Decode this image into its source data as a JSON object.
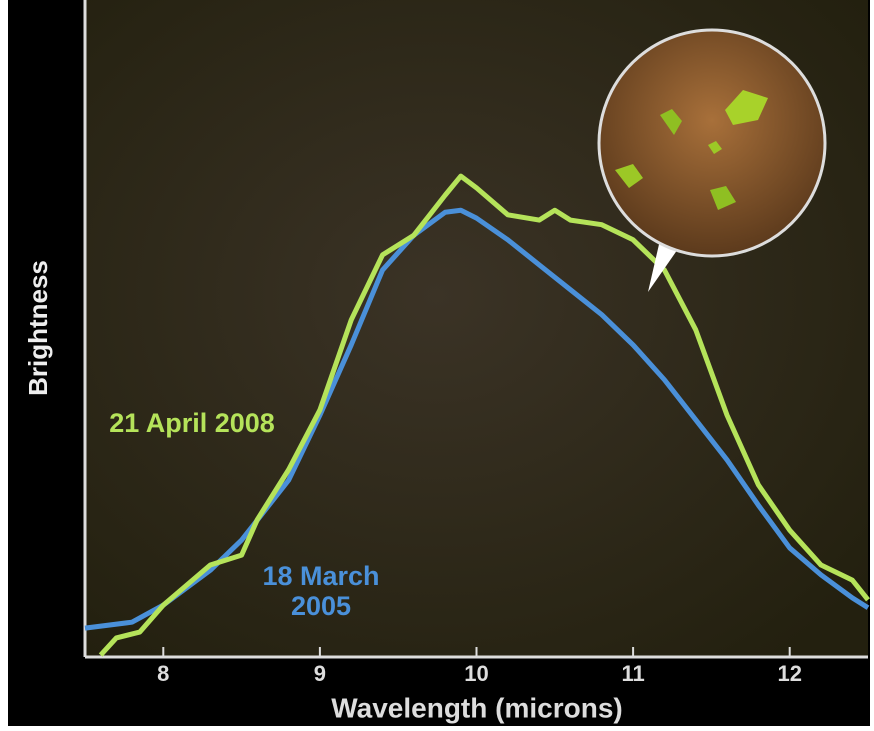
{
  "chart_data": {
    "type": "line",
    "xlabel": "Wavelength (microns)",
    "ylabel": "Brightness",
    "xlim": [
      7.5,
      12.5
    ],
    "xticks": [
      8,
      9,
      10,
      11,
      12
    ],
    "ylim": [
      0,
      100
    ],
    "series": [
      {
        "name": "18 March 2005",
        "color": "#4a90d9",
        "x": [
          7.5,
          7.8,
          8.0,
          8.3,
          8.5,
          8.8,
          9.0,
          9.2,
          9.4,
          9.6,
          9.8,
          9.9,
          10.0,
          10.2,
          10.4,
          10.6,
          10.8,
          11.0,
          11.2,
          11.4,
          11.6,
          11.8,
          12.0,
          12.2,
          12.4,
          12.5
        ],
        "values": [
          4.4,
          5.3,
          7.9,
          13.2,
          17.8,
          26.9,
          36.8,
          47.5,
          58.9,
          64.2,
          67.7,
          68.0,
          66.8,
          63.5,
          59.7,
          55.9,
          52.1,
          47.5,
          42.2,
          36.1,
          30.0,
          23.1,
          16.6,
          12.5,
          9.0,
          7.5
        ]
      },
      {
        "name": "21 April 2008",
        "color": "#b5e35a",
        "x": [
          7.6,
          7.7,
          7.85,
          8.0,
          8.3,
          8.5,
          8.6,
          8.8,
          9.0,
          9.2,
          9.4,
          9.6,
          9.8,
          9.9,
          10.0,
          10.2,
          10.4,
          10.5,
          10.6,
          10.8,
          11.0,
          11.2,
          11.4,
          11.6,
          11.8,
          12.0,
          12.2,
          12.4,
          12.5
        ],
        "values": [
          0.3,
          2.9,
          3.8,
          7.9,
          14.0,
          15.5,
          20.9,
          28.5,
          37.6,
          51.3,
          61.2,
          64.2,
          70.3,
          73.2,
          71.4,
          67.3,
          66.5,
          68.0,
          66.5,
          65.8,
          63.5,
          58.9,
          49.8,
          36.8,
          26.2,
          19.3,
          14.0,
          11.7,
          8.7
        ]
      }
    ]
  }
}
